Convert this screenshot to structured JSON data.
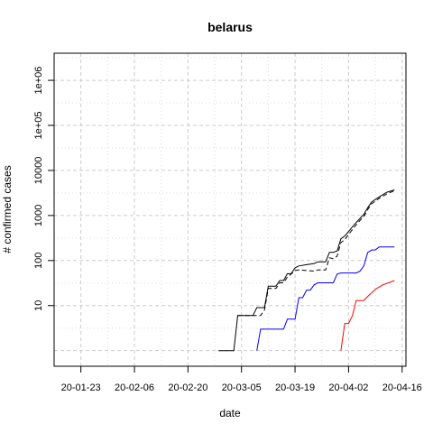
{
  "chart_data": {
    "type": "line",
    "title": "belarus",
    "xlabel": "date",
    "ylabel": "# confirmed cases",
    "y_scale": "log",
    "grid": true,
    "x_ticks": [
      "20-01-23",
      "20-02-06",
      "20-02-20",
      "20-03-05",
      "20-03-19",
      "20-04-02",
      "20-04-16"
    ],
    "y_ticks": [
      "10",
      "100",
      "1000",
      "10000",
      "1e+05",
      "1e+06"
    ],
    "xlim": [
      "2020-01-16",
      "2020-04-17"
    ],
    "ylim": [
      0.45,
      4000000
    ],
    "series": [
      {
        "color": "#000000",
        "dash": "solid",
        "points": [
          [
            "2020-02-28",
            1
          ],
          [
            "2020-03-03",
            1
          ],
          [
            "2020-03-04",
            6
          ],
          [
            "2020-03-08",
            6
          ],
          [
            "2020-03-09",
            9
          ],
          [
            "2020-03-11",
            9
          ],
          [
            "2020-03-12",
            27
          ],
          [
            "2020-03-14",
            27
          ],
          [
            "2020-03-15",
            36
          ],
          [
            "2020-03-16",
            36
          ],
          [
            "2020-03-17",
            51
          ],
          [
            "2020-03-18",
            51
          ],
          [
            "2020-03-19",
            69
          ],
          [
            "2020-03-20",
            76
          ],
          [
            "2020-03-22",
            81
          ],
          [
            "2020-03-24",
            86
          ],
          [
            "2020-03-25",
            94
          ],
          [
            "2020-03-27",
            94
          ],
          [
            "2020-03-28",
            152
          ],
          [
            "2020-03-29",
            152
          ],
          [
            "2020-03-30",
            163
          ],
          [
            "2020-03-31",
            304
          ],
          [
            "2020-04-01",
            351
          ],
          [
            "2020-04-02",
            440
          ],
          [
            "2020-04-03",
            562
          ],
          [
            "2020-04-04",
            700
          ],
          [
            "2020-04-05",
            861
          ],
          [
            "2020-04-06",
            1066
          ],
          [
            "2020-04-07",
            1486
          ],
          [
            "2020-04-08",
            1981
          ],
          [
            "2020-04-10",
            2578
          ],
          [
            "2020-04-12",
            3281
          ],
          [
            "2020-04-14",
            3700
          ]
        ]
      },
      {
        "color": "#000000",
        "dash": "dashed",
        "points": [
          [
            "2020-03-04",
            6
          ],
          [
            "2020-03-08",
            6
          ],
          [
            "2020-03-09",
            6
          ],
          [
            "2020-03-10",
            6
          ],
          [
            "2020-03-11",
            8
          ],
          [
            "2020-03-12",
            24
          ],
          [
            "2020-03-14",
            24
          ],
          [
            "2020-03-15",
            32
          ],
          [
            "2020-03-16",
            32
          ],
          [
            "2020-03-17",
            43
          ],
          [
            "2020-03-18",
            50
          ],
          [
            "2020-03-19",
            60
          ],
          [
            "2020-03-20",
            62
          ],
          [
            "2020-03-22",
            60
          ],
          [
            "2020-03-24",
            58
          ],
          [
            "2020-03-25",
            62
          ],
          [
            "2020-03-27",
            62
          ],
          [
            "2020-03-28",
            115
          ],
          [
            "2020-03-29",
            110
          ],
          [
            "2020-03-30",
            125
          ],
          [
            "2020-03-31",
            250
          ],
          [
            "2020-04-01",
            290
          ],
          [
            "2020-04-02",
            380
          ],
          [
            "2020-04-03",
            490
          ],
          [
            "2020-04-04",
            620
          ],
          [
            "2020-04-05",
            780
          ],
          [
            "2020-04-06",
            960
          ],
          [
            "2020-04-07",
            1350
          ],
          [
            "2020-04-08",
            1800
          ],
          [
            "2020-04-10",
            2400
          ],
          [
            "2020-04-12",
            3000
          ],
          [
            "2020-04-14",
            3550
          ]
        ]
      },
      {
        "color": "#0000ff",
        "dash": "solid",
        "points": [
          [
            "2020-03-09",
            1
          ],
          [
            "2020-03-10",
            3
          ],
          [
            "2020-03-16",
            3
          ],
          [
            "2020-03-17",
            5
          ],
          [
            "2020-03-19",
            5
          ],
          [
            "2020-03-20",
            15
          ],
          [
            "2020-03-21",
            15
          ],
          [
            "2020-03-22",
            22
          ],
          [
            "2020-03-23",
            22
          ],
          [
            "2020-03-24",
            29
          ],
          [
            "2020-03-25",
            32
          ],
          [
            "2020-03-29",
            32
          ],
          [
            "2020-03-30",
            50
          ],
          [
            "2020-03-31",
            53
          ],
          [
            "2020-04-04",
            53
          ],
          [
            "2020-04-05",
            58
          ],
          [
            "2020-04-06",
            77
          ],
          [
            "2020-04-07",
            150
          ],
          [
            "2020-04-08",
            170
          ],
          [
            "2020-04-09",
            172
          ],
          [
            "2020-04-10",
            200
          ],
          [
            "2020-04-14",
            200
          ]
        ]
      },
      {
        "color": "#ff0000",
        "dash": "solid",
        "points": [
          [
            "2020-03-31",
            1
          ],
          [
            "2020-04-01",
            4
          ],
          [
            "2020-04-02",
            4
          ],
          [
            "2020-04-03",
            6
          ],
          [
            "2020-04-04",
            13
          ],
          [
            "2020-04-06",
            13
          ],
          [
            "2020-04-07",
            16
          ],
          [
            "2020-04-08",
            19
          ],
          [
            "2020-04-09",
            23
          ],
          [
            "2020-04-11",
            29
          ],
          [
            "2020-04-14",
            36
          ]
        ]
      }
    ]
  }
}
